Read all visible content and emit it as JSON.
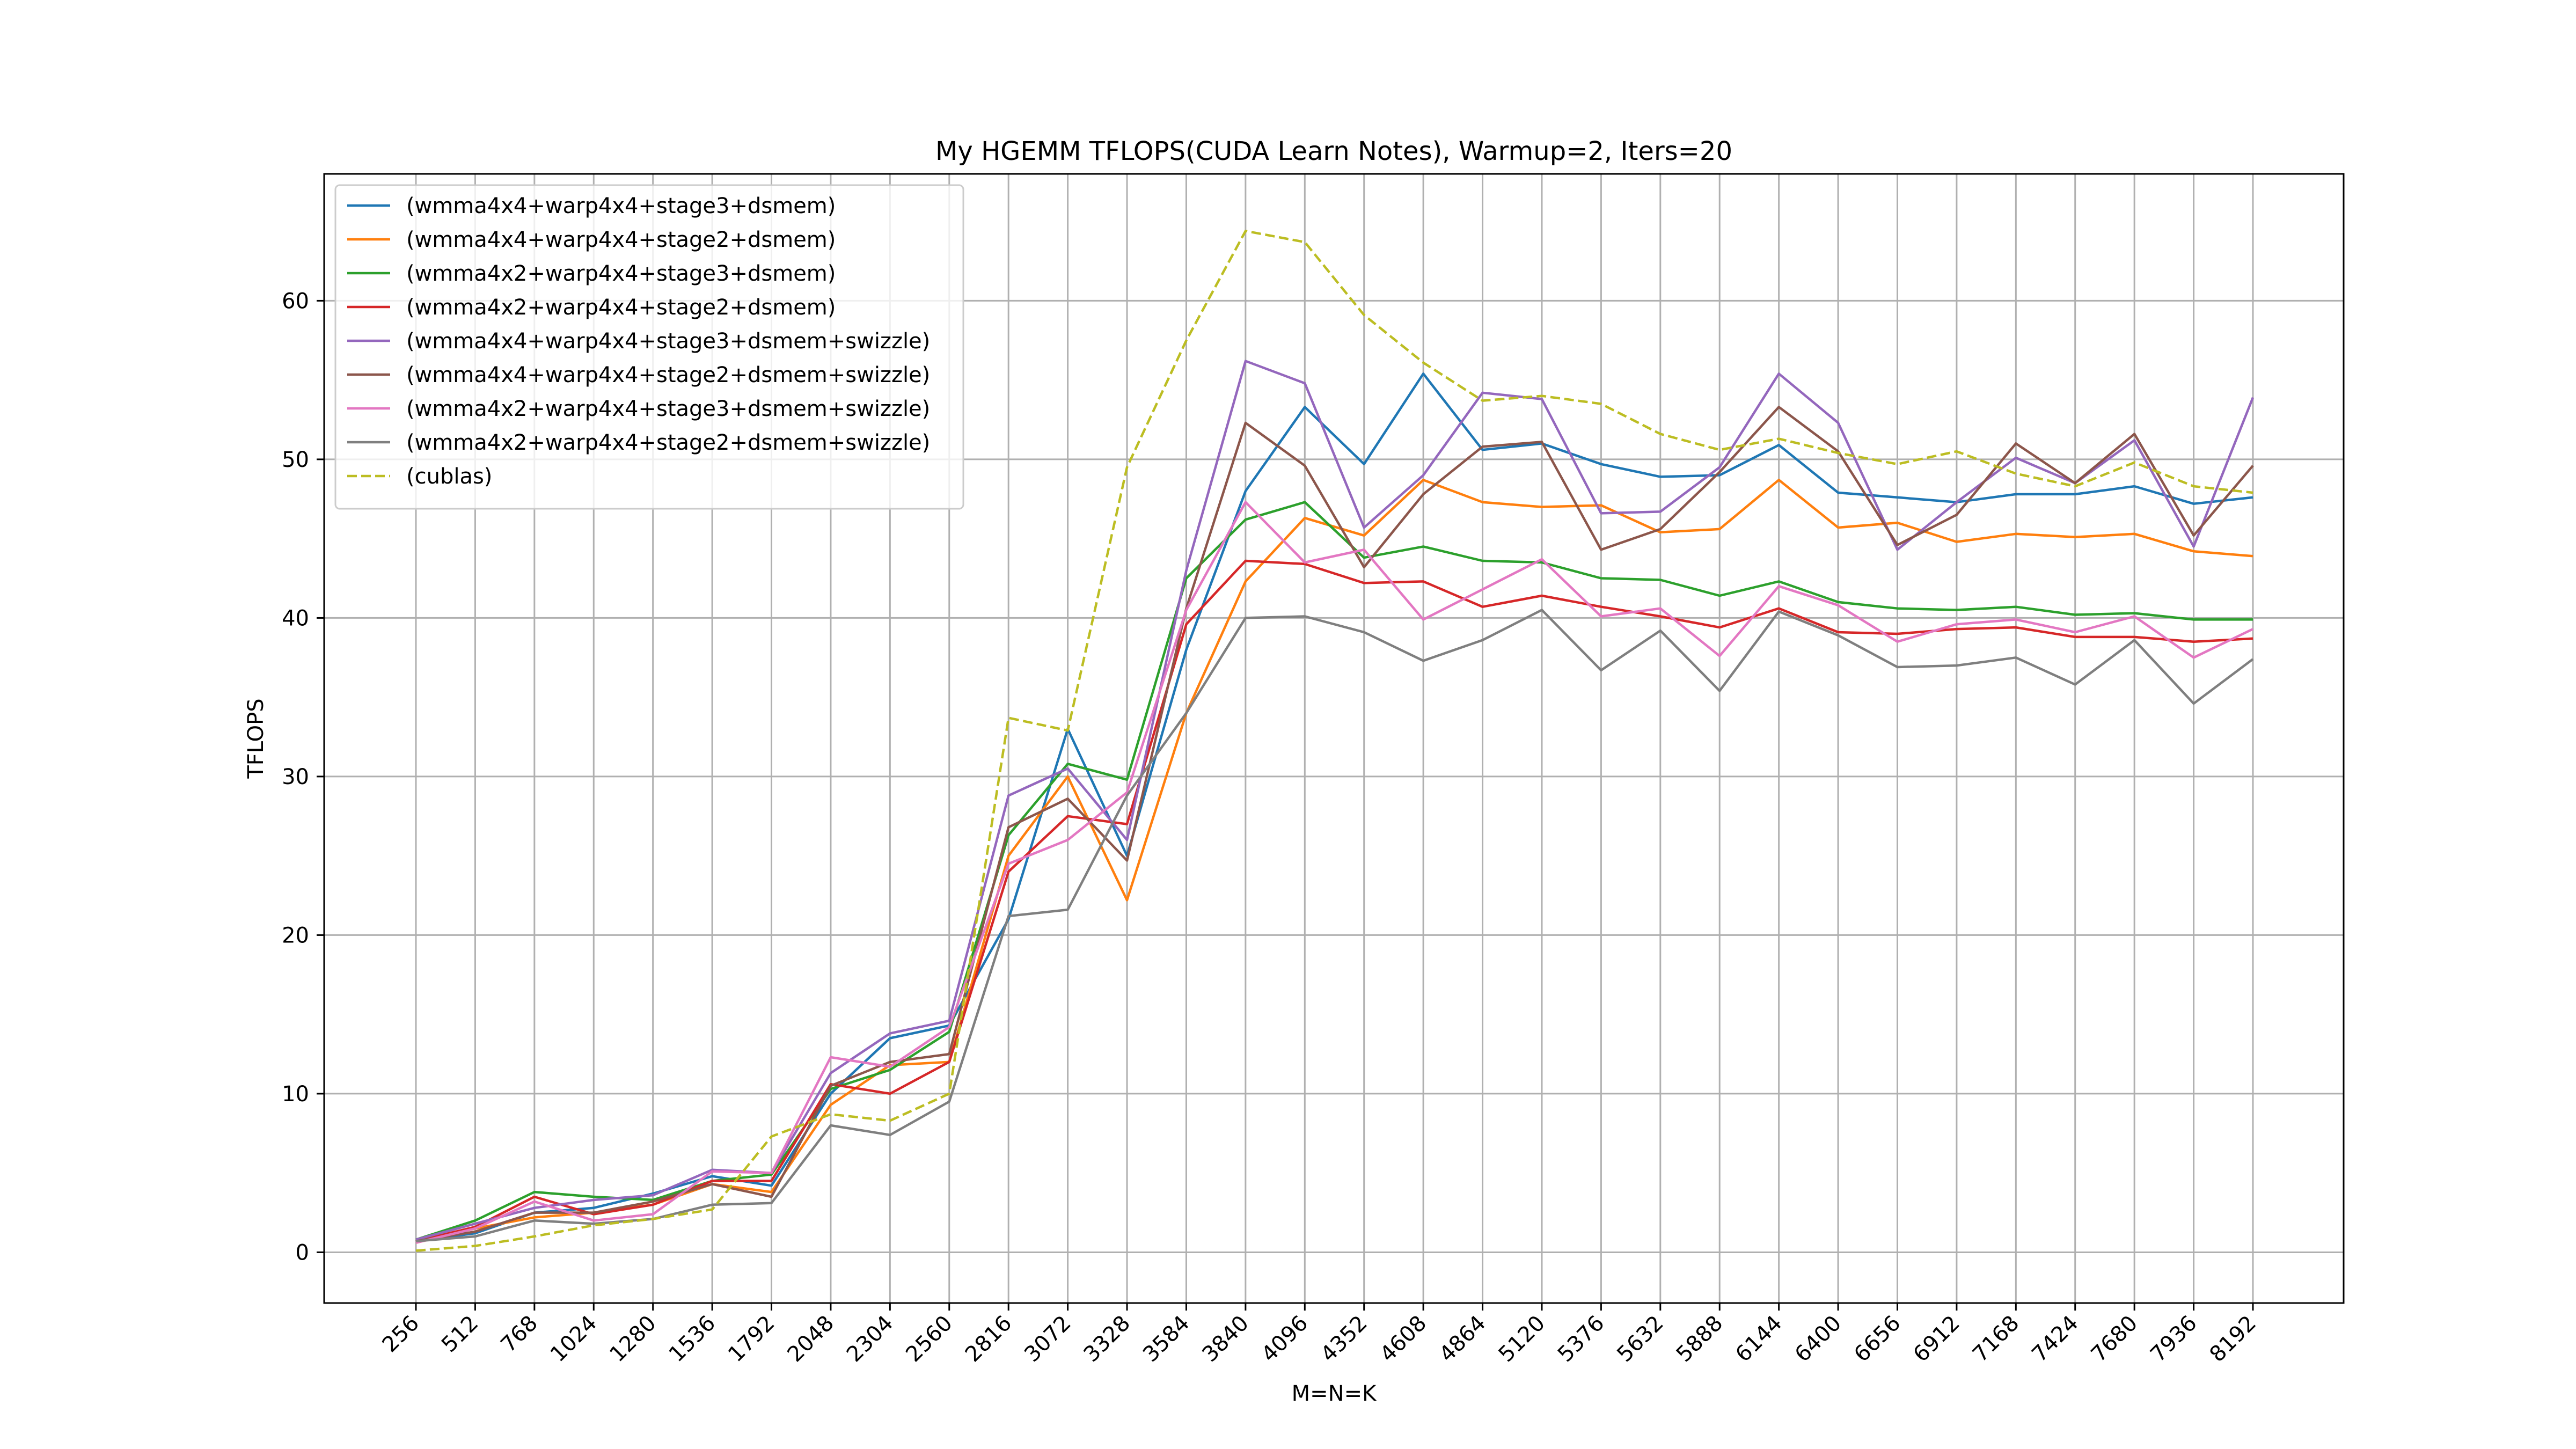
{
  "chart_data": {
    "type": "line",
    "title": "My HGEMM TFLOPS(CUDA Learn Notes), Warmup=2, Iters=20",
    "xlabel": "M=N=K",
    "ylabel": "TFLOPS",
    "ylim": [
      -3.2,
      68
    ],
    "yticks": [
      0,
      10,
      20,
      30,
      40,
      50,
      60
    ],
    "grid": true,
    "legend_position": "upper-left",
    "categories": [
      "256",
      "512",
      "768",
      "1024",
      "1280",
      "1536",
      "1792",
      "2048",
      "2304",
      "2560",
      "2816",
      "3072",
      "3328",
      "3584",
      "3840",
      "4096",
      "4352",
      "4608",
      "4864",
      "5120",
      "5376",
      "5632",
      "5888",
      "6144",
      "6400",
      "6656",
      "6912",
      "7168",
      "7424",
      "7680",
      "7936",
      "8192"
    ],
    "series": [
      {
        "name": "(wmma4x4+warp4x4+stage3+dsmem)",
        "color": "#1f77b4",
        "dash": "solid",
        "values": [
          0.7,
          1.2,
          2.5,
          2.8,
          3.7,
          4.8,
          4.2,
          10.0,
          13.5,
          14.3,
          21.0,
          33.0,
          25.0,
          38.0,
          48.0,
          53.3,
          49.7,
          55.4,
          50.6,
          51.0,
          49.7,
          48.9,
          49.0,
          50.9,
          47.9,
          47.6,
          47.3,
          47.8,
          47.8,
          48.3,
          47.2,
          47.6
        ]
      },
      {
        "name": "(wmma4x4+warp4x4+stage2+dsmem)",
        "color": "#ff7f0e",
        "dash": "solid",
        "values": [
          0.6,
          1.5,
          2.2,
          2.5,
          3.0,
          4.3,
          3.8,
          9.3,
          11.8,
          12.0,
          25.0,
          30.0,
          22.2,
          34.0,
          42.3,
          46.3,
          45.2,
          48.7,
          47.3,
          47.0,
          47.1,
          45.4,
          45.6,
          48.7,
          45.7,
          46.0,
          44.8,
          45.3,
          45.1,
          45.3,
          44.2,
          43.9
        ]
      },
      {
        "name": "(wmma4x2+warp4x4+stage3+dsmem)",
        "color": "#2ca02c",
        "dash": "solid",
        "values": [
          0.8,
          2.0,
          3.8,
          3.5,
          3.3,
          4.5,
          4.9,
          10.3,
          11.5,
          13.9,
          26.3,
          30.8,
          29.8,
          42.5,
          46.2,
          47.3,
          43.8,
          44.5,
          43.6,
          43.5,
          42.5,
          42.4,
          41.4,
          42.3,
          41.0,
          40.6,
          40.5,
          40.7,
          40.2,
          40.3,
          39.9,
          39.9
        ]
      },
      {
        "name": "(wmma4x2+warp4x4+stage2+dsmem)",
        "color": "#d62728",
        "dash": "solid",
        "values": [
          0.7,
          1.6,
          3.5,
          2.4,
          3.0,
          4.5,
          4.5,
          10.6,
          10.0,
          12.0,
          24.0,
          27.5,
          27.0,
          39.6,
          43.6,
          43.4,
          42.2,
          42.3,
          40.7,
          41.4,
          40.7,
          40.1,
          39.4,
          40.6,
          39.1,
          39.0,
          39.3,
          39.4,
          38.8,
          38.8,
          38.5,
          38.7
        ]
      },
      {
        "name": "(wmma4x4+warp4x4+stage3+dsmem+swizzle)",
        "color": "#9467bd",
        "dash": "solid",
        "values": [
          0.8,
          1.8,
          2.8,
          3.3,
          3.6,
          5.2,
          5.0,
          11.3,
          13.8,
          14.6,
          28.8,
          30.5,
          26.0,
          43.0,
          56.2,
          54.8,
          45.7,
          49.0,
          54.2,
          53.8,
          46.6,
          46.7,
          49.5,
          55.4,
          52.3,
          44.3,
          47.3,
          50.1,
          48.5,
          51.2,
          44.5,
          53.9
        ]
      },
      {
        "name": "(wmma4x4+warp4x4+stage2+dsmem+swizzle)",
        "color": "#8c564b",
        "dash": "solid",
        "values": [
          0.7,
          1.3,
          2.5,
          2.5,
          3.2,
          4.3,
          3.5,
          10.5,
          12.0,
          12.5,
          26.8,
          28.6,
          24.7,
          40.6,
          52.3,
          49.6,
          43.2,
          47.8,
          50.8,
          51.1,
          44.3,
          45.6,
          49.2,
          53.3,
          50.5,
          44.6,
          46.5,
          51.0,
          48.5,
          51.6,
          45.2,
          49.6
        ]
      },
      {
        "name": "(wmma4x2+warp4x4+stage3+dsmem+swizzle)",
        "color": "#e377c2",
        "dash": "solid",
        "values": [
          0.6,
          1.5,
          3.2,
          2.0,
          2.4,
          5.1,
          5.0,
          12.3,
          11.7,
          14.2,
          24.5,
          26.0,
          29.0,
          40.5,
          47.3,
          43.5,
          44.3,
          39.9,
          41.8,
          43.7,
          40.1,
          40.6,
          37.6,
          42.0,
          40.8,
          38.5,
          39.6,
          39.9,
          39.1,
          40.1,
          37.5,
          39.3
        ]
      },
      {
        "name": "(wmma4x2+warp4x4+stage2+dsmem+swizzle)",
        "color": "#7f7f7f",
        "dash": "solid",
        "values": [
          0.7,
          1.0,
          2.0,
          1.8,
          2.1,
          3.0,
          3.1,
          8.0,
          7.4,
          9.5,
          21.2,
          21.6,
          28.8,
          34.0,
          40.0,
          40.1,
          39.1,
          37.3,
          38.6,
          40.5,
          36.7,
          39.2,
          35.4,
          40.4,
          38.9,
          36.9,
          37.0,
          37.5,
          35.8,
          38.6,
          34.6,
          37.4
        ]
      },
      {
        "name": "(cublas)",
        "color": "#bcbd22",
        "dash": "dashed",
        "values": [
          0.1,
          0.4,
          1.0,
          1.7,
          2.1,
          2.7,
          7.3,
          8.7,
          8.3,
          10.0,
          33.7,
          32.9,
          49.5,
          57.5,
          64.4,
          63.7,
          59.1,
          56.1,
          53.7,
          54.0,
          53.5,
          51.6,
          50.6,
          51.3,
          50.4,
          49.7,
          50.5,
          49.1,
          48.3,
          49.8,
          48.3,
          47.9
        ]
      }
    ]
  }
}
